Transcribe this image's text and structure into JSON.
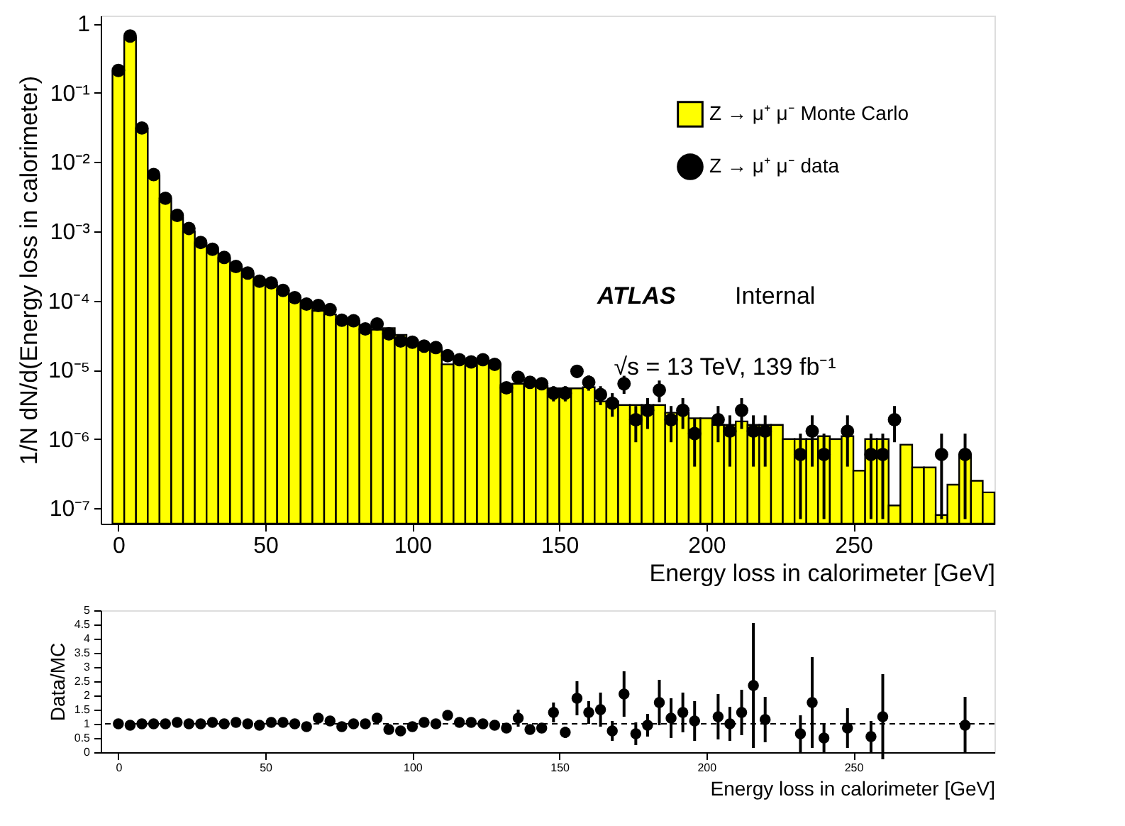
{
  "chart_data": [
    {
      "type": "histogram",
      "xlabel": "Energy loss in calorimeter [GeV]",
      "ylabel": "1/N dN/d(Energy loss in calorimeter)",
      "log": "y",
      "legend": "top right",
      "grid": false,
      "annotations": [
        "ATLAS",
        "Internal",
        "√s = 13 TeV, 139 fb⁻¹"
      ],
      "xlim": [
        -6,
        298
      ],
      "xticks": [
        0,
        50,
        100,
        150,
        200,
        250
      ],
      "ylim": [
        6e-08,
        1.3
      ],
      "yticks": [
        {
          "value": 1,
          "label": "1"
        },
        {
          "value": 0.1,
          "label": "10⁻¹"
        },
        {
          "value": 0.01,
          "label": "10⁻²"
        },
        {
          "value": 0.001,
          "label": "10⁻³"
        },
        {
          "value": 0.0001,
          "label": "10⁻⁴"
        },
        {
          "value": 1e-05,
          "label": "10⁻⁵"
        },
        {
          "value": 1e-06,
          "label": "10⁻⁶"
        },
        {
          "value": 1e-07,
          "label": "10⁻⁷"
        }
      ],
      "bins": [
        -2,
        2,
        6,
        10,
        14,
        18,
        22,
        26,
        30,
        34,
        38,
        42,
        46,
        50,
        54,
        58,
        62,
        66,
        70,
        74,
        78,
        82,
        86,
        90,
        94,
        98,
        102,
        106,
        110,
        114,
        118,
        122,
        126,
        130,
        134,
        138,
        142,
        146,
        150,
        154,
        158,
        162,
        166,
        170,
        174,
        178,
        182,
        186,
        190,
        194,
        198,
        202,
        206,
        210,
        214,
        218,
        222,
        226,
        230,
        234,
        238,
        242,
        246,
        250,
        254,
        258,
        262,
        266,
        270,
        274,
        278,
        282,
        286,
        290,
        294,
        298
      ],
      "series": [
        {
          "name": "Z → μ⁺ μ⁻ Monte Carlo",
          "type": "histogram",
          "color": "#ffff00",
          "values": [
            0.2,
            0.63,
            0.03,
            0.0063,
            0.0028,
            0.0016,
            0.001,
            0.00066,
            0.00052,
            0.0004,
            0.0003,
            0.00024,
            0.00019,
            0.00017,
            0.00014,
            0.0001,
            8.5e-05,
            7.1e-05,
            6.3e-05,
            5.2e-05,
            5e-05,
            3.8e-05,
            3.8e-05,
            4e-05,
            3.2e-05,
            2.3e-05,
            2.2e-05,
            2e-05,
            1.2e-05,
            1.4e-05,
            1.3e-05,
            1.3e-05,
            1.2e-05,
            6e-06,
            6.3e-06,
            6e-06,
            5.8e-06,
            5.4e-06,
            5.4e-06,
            5.4e-06,
            5.6e-06,
            3.5e-06,
            3.5e-06,
            3.1e-06,
            3.1e-06,
            3.1e-06,
            3.1e-06,
            2.4e-06,
            2.4e-06,
            2e-06,
            2e-06,
            1.6e-06,
            1.6e-06,
            1.8e-06,
            1.6e-06,
            1.6e-06,
            1.6e-06,
            1e-06,
            1e-06,
            1e-06,
            1.1e-06,
            1e-06,
            1.1e-06,
            3.5e-07,
            1e-06,
            1e-06,
            1.1e-07,
            8.3e-07,
            3.9e-07,
            3.9e-07,
            8e-08,
            2.2e-07,
            6e-07,
            2.5e-07,
            1.7e-07
          ]
        },
        {
          "name": "Z → μ⁺ μ⁻ data",
          "type": "scatter",
          "color": "#000000",
          "marker": "circle",
          "x": [
            0,
            4,
            8,
            12,
            16,
            20,
            24,
            28,
            32,
            36,
            40,
            44,
            48,
            52,
            56,
            60,
            64,
            68,
            72,
            76,
            80,
            84,
            88,
            92,
            96,
            100,
            104,
            108,
            112,
            116,
            120,
            124,
            128,
            132,
            136,
            140,
            144,
            148,
            152,
            156,
            160,
            164,
            168,
            172,
            176,
            180,
            184,
            188,
            192,
            196,
            200,
            204,
            208,
            212,
            216,
            220,
            224,
            228,
            232,
            236,
            240,
            244,
            248,
            252,
            256,
            260,
            264,
            268,
            272,
            276,
            280,
            284,
            288
          ],
          "values": [
            0.21,
            0.66,
            0.031,
            0.0066,
            0.003,
            0.0017,
            0.0011,
            0.00069,
            0.00055,
            0.00042,
            0.00031,
            0.00025,
            0.00019,
            0.00018,
            0.00014,
            0.00011,
            8.9e-05,
            8.5e-05,
            7.4e-05,
            5.2e-05,
            5.1e-05,
            3.9e-05,
            4.6e-05,
            3.3e-05,
            2.6e-05,
            2.5e-05,
            2.2e-05,
            2.1e-05,
            1.6e-05,
            1.4e-05,
            1.3e-05,
            1.4e-05,
            1.2e-05,
            5.5e-06,
            7.8e-06,
            6.6e-06,
            6.3e-06,
            4.6e-06,
            4.6e-06,
            9.5e-06,
            6.6e-06,
            4.4e-06,
            3.3e-06,
            6.3e-06,
            1.9e-06,
            2.6e-06,
            5.1e-06,
            1.9e-06,
            2.6e-06,
            1.2e-06,
            null,
            1.9e-06,
            1.3e-06,
            2.6e-06,
            1.3e-06,
            1.3e-06,
            null,
            null,
            6e-07,
            1.3e-06,
            6e-07,
            null,
            1.3e-06,
            null,
            6e-07,
            6e-07,
            1.9e-06,
            null,
            null,
            null,
            6e-07,
            null,
            6e-07
          ],
          "errors": [
            null,
            null,
            null,
            null,
            null,
            null,
            null,
            null,
            null,
            null,
            null,
            null,
            null,
            null,
            null,
            null,
            null,
            null,
            null,
            null,
            null,
            null,
            null,
            null,
            null,
            null,
            null,
            null,
            null,
            null,
            null,
            null,
            null,
            [
              4.5e-06,
              6.7e-06
            ],
            [
              6.5e-06,
              9.2e-06
            ],
            [
              5.4e-06,
              7.9e-06
            ],
            [
              5.1e-06,
              7.6e-06
            ],
            [
              3.5e-06,
              5.8e-06
            ],
            [
              3.5e-06,
              5.8e-06
            ],
            [
              7.6e-06,
              1.15e-05
            ],
            [
              5e-06,
              8.3e-06
            ],
            [
              3.1e-06,
              5.8e-06
            ],
            [
              2.1e-06,
              4.6e-06
            ],
            [
              4.5e-06,
              8.2e-06
            ],
            [
              9e-07,
              3e-06
            ],
            [
              1.4e-06,
              3.9e-06
            ],
            [
              3.4e-06,
              7e-06
            ],
            [
              9e-07,
              3e-06
            ],
            [
              1.4e-06,
              3.9e-06
            ],
            [
              4e-07,
              2e-06
            ],
            null,
            [
              9e-07,
              3e-06
            ],
            [
              4e-07,
              2.2e-06
            ],
            [
              1.4e-06,
              3.9e-06
            ],
            [
              4e-07,
              2.2e-06
            ],
            [
              4e-07,
              2.2e-06
            ],
            null,
            null,
            [
              7e-08,
              1.2e-06
            ],
            [
              4e-07,
              2.2e-06
            ],
            [
              7e-08,
              1.2e-06
            ],
            null,
            [
              4e-07,
              2.2e-06
            ],
            null,
            [
              7e-08,
              1.2e-06
            ],
            [
              7e-08,
              1.2e-06
            ],
            [
              9e-07,
              3e-06
            ],
            null,
            null,
            null,
            [
              7e-08,
              1.2e-06
            ],
            null,
            [
              7e-08,
              1.2e-06
            ]
          ]
        }
      ]
    },
    {
      "type": "scatter",
      "xlabel": "Energy loss in calorimeter [GeV]",
      "ylabel": "Data/MC",
      "grid": false,
      "marker": "circle",
      "xlim": [
        -6,
        298
      ],
      "xticks": [
        0,
        50,
        100,
        150,
        200,
        250
      ],
      "ylim": [
        0,
        5
      ],
      "yticks": [
        0,
        0.5,
        1,
        1.5,
        2,
        2.5,
        3,
        3.5,
        4,
        4.5,
        5
      ],
      "ref_lines": [
        {
          "axis": "y",
          "value": 1,
          "line_style": "dashed",
          "color": "#000000"
        }
      ],
      "series": [
        {
          "color": "#000000",
          "x": [
            0,
            4,
            8,
            12,
            16,
            20,
            24,
            28,
            32,
            36,
            40,
            44,
            48,
            52,
            56,
            60,
            64,
            68,
            72,
            76,
            80,
            84,
            88,
            92,
            96,
            100,
            104,
            108,
            112,
            116,
            120,
            124,
            128,
            132,
            136,
            140,
            144,
            148,
            152,
            156,
            160,
            164,
            168,
            172,
            176,
            180,
            184,
            188,
            192,
            196,
            200,
            204,
            208,
            212,
            216,
            220,
            224,
            228,
            232,
            236,
            240,
            244,
            248,
            252,
            256,
            260,
            264,
            268,
            272,
            276,
            280,
            284,
            288
          ],
          "values": [
            1.0,
            0.95,
            1.0,
            1.0,
            1.0,
            1.05,
            1.0,
            1.0,
            1.05,
            1.0,
            1.05,
            1.0,
            0.95,
            1.05,
            1.05,
            1.0,
            0.9,
            1.2,
            1.1,
            0.9,
            1.0,
            1.0,
            1.2,
            0.8,
            0.75,
            0.9,
            1.05,
            1.0,
            1.3,
            1.05,
            1.05,
            1.0,
            0.95,
            0.85,
            1.2,
            0.8,
            0.85,
            1.4,
            0.7,
            1.9,
            1.4,
            1.5,
            0.75,
            2.05,
            0.65,
            0.95,
            1.75,
            1.2,
            1.4,
            1.1,
            null,
            1.25,
            1.0,
            1.4,
            2.35,
            1.15,
            null,
            null,
            0.65,
            1.75,
            0.5,
            null,
            0.85,
            null,
            0.55,
            1.25,
            null,
            null,
            null,
            null,
            null,
            null,
            0.95
          ],
          "errors": [
            null,
            null,
            null,
            null,
            null,
            null,
            null,
            null,
            null,
            null,
            null,
            null,
            null,
            null,
            null,
            null,
            null,
            null,
            null,
            null,
            null,
            null,
            null,
            null,
            null,
            null,
            null,
            null,
            null,
            null,
            null,
            null,
            null,
            0.15,
            0.3,
            0.15,
            0.15,
            0.35,
            0.2,
            0.6,
            0.4,
            0.6,
            0.35,
            0.8,
            0.4,
            0.4,
            0.8,
            0.7,
            0.7,
            0.7,
            null,
            0.8,
            0.6,
            0.8,
            2.2,
            0.8,
            null,
            null,
            0.65,
            1.6,
            0.5,
            null,
            0.7,
            null,
            0.55,
            1.5,
            null,
            null,
            null,
            null,
            null,
            null,
            1.0
          ]
        }
      ]
    }
  ]
}
